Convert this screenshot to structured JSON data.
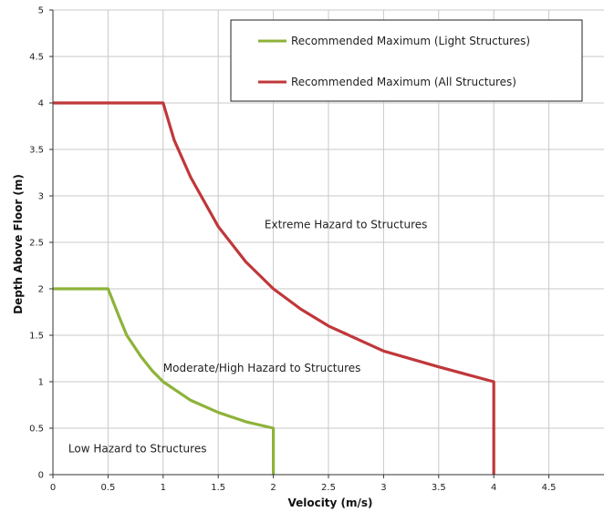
{
  "chart_data": {
    "type": "line",
    "xlabel": "Velocity (m/s)",
    "ylabel": "Depth Above Floor (m)",
    "xlim": [
      0,
      5
    ],
    "ylim": [
      0,
      5
    ],
    "xticks": [
      0,
      0.5,
      1,
      1.5,
      2,
      2.5,
      3,
      3.5,
      4,
      4.5
    ],
    "xtick_labels": [
      "0",
      "0.5",
      "1",
      "1.5",
      "2",
      "2.5",
      "3",
      "3.5",
      "4",
      "4.5"
    ],
    "yticks": [
      0,
      0.5,
      1,
      1.5,
      2,
      2.5,
      3,
      3.5,
      4,
      4.5,
      5
    ],
    "ytick_labels": [
      "0",
      "0.5",
      "1",
      "1.5",
      "2",
      "2.5",
      "3",
      "3.5",
      "4",
      "4.5",
      "5"
    ],
    "grid": true,
    "legend_position": "top-right",
    "series": [
      {
        "name": "Recommended Maximum (Light Structures)",
        "color": "#8db33a",
        "points": [
          [
            0,
            2
          ],
          [
            0.5,
            2
          ],
          [
            0.6,
            1.7
          ],
          [
            0.67,
            1.5
          ],
          [
            0.8,
            1.27
          ],
          [
            0.9,
            1.12
          ],
          [
            1,
            1
          ],
          [
            1.25,
            0.8
          ],
          [
            1.5,
            0.67
          ],
          [
            1.75,
            0.57
          ],
          [
            2,
            0.5
          ],
          [
            2,
            0
          ]
        ]
      },
      {
        "name": "Recommended Maximum (All Structures)",
        "color": "#c0373a",
        "points": [
          [
            0,
            4
          ],
          [
            1,
            4
          ],
          [
            1.1,
            3.6
          ],
          [
            1.25,
            3.2
          ],
          [
            1.5,
            2.67
          ],
          [
            1.75,
            2.29
          ],
          [
            2,
            2
          ],
          [
            2.25,
            1.78
          ],
          [
            2.5,
            1.6
          ],
          [
            3,
            1.33
          ],
          [
            3.5,
            1.16
          ],
          [
            4,
            1
          ],
          [
            4,
            0
          ]
        ]
      }
    ],
    "annotations": [
      {
        "text": "Extreme Hazard to Structures",
        "x": 1.92,
        "y": 2.65
      },
      {
        "text": "Moderate/High Hazard to Structures",
        "x": 1.0,
        "y": 1.11
      },
      {
        "text": "Low Hazard to Structures",
        "x": 0.14,
        "y": 0.24
      }
    ]
  }
}
